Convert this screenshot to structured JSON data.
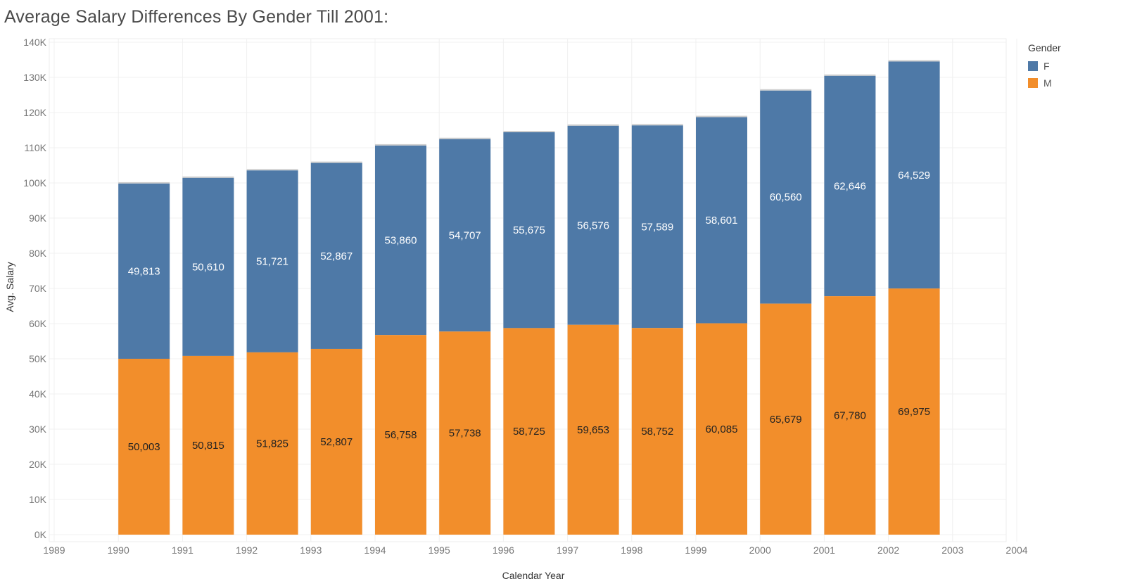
{
  "title": "Average Salary Differences By Gender Till 2001:",
  "legend": {
    "title": "Gender",
    "items": [
      {
        "label": "F",
        "color": "#4e79a7"
      },
      {
        "label": "M",
        "color": "#f28e2b"
      }
    ]
  },
  "chart_data": {
    "type": "bar",
    "stacked": true,
    "title": "Average Salary Differences By Gender Till 2001:",
    "xlabel": "Calendar Year",
    "ylabel": "Avg. Salary",
    "x_ticks": [
      "1989",
      "1990",
      "1991",
      "1992",
      "1993",
      "1994",
      "1995",
      "1996",
      "1997",
      "1998",
      "1999",
      "2000",
      "2001",
      "2002",
      "2003",
      "2004"
    ],
    "xlim": [
      1989,
      2004
    ],
    "y_ticks": [
      "0K",
      "10K",
      "20K",
      "30K",
      "40K",
      "50K",
      "60K",
      "70K",
      "80K",
      "90K",
      "100K",
      "110K",
      "120K",
      "130K",
      "140K"
    ],
    "ylim": [
      0,
      140000
    ],
    "grid": true,
    "legend_position": "top-right",
    "categories": [
      "1990",
      "1991",
      "1992",
      "1993",
      "1994",
      "1995",
      "1996",
      "1997",
      "1998",
      "1999",
      "2000",
      "2001",
      "2002"
    ],
    "series": [
      {
        "name": "M",
        "color": "#f28e2b",
        "values": [
          50003,
          50815,
          51825,
          52807,
          56758,
          57738,
          58725,
          59653,
          58752,
          60085,
          65679,
          67780,
          69975
        ]
      },
      {
        "name": "F",
        "color": "#4e79a7",
        "values": [
          49813,
          50610,
          51721,
          52867,
          53860,
          54707,
          55675,
          56576,
          57589,
          58601,
          60560,
          62646,
          64529
        ]
      }
    ],
    "labels": {
      "M": [
        "50,003",
        "50,815",
        "51,825",
        "52,807",
        "56,758",
        "57,738",
        "58,725",
        "59,653",
        "58,752",
        "60,085",
        "65,679",
        "67,780",
        "69,975"
      ],
      "F": [
        "49,813",
        "50,610",
        "51,721",
        "52,867",
        "53,860",
        "54,707",
        "55,675",
        "56,576",
        "57,589",
        "58,601",
        "60,560",
        "62,646",
        "64,529"
      ]
    }
  }
}
